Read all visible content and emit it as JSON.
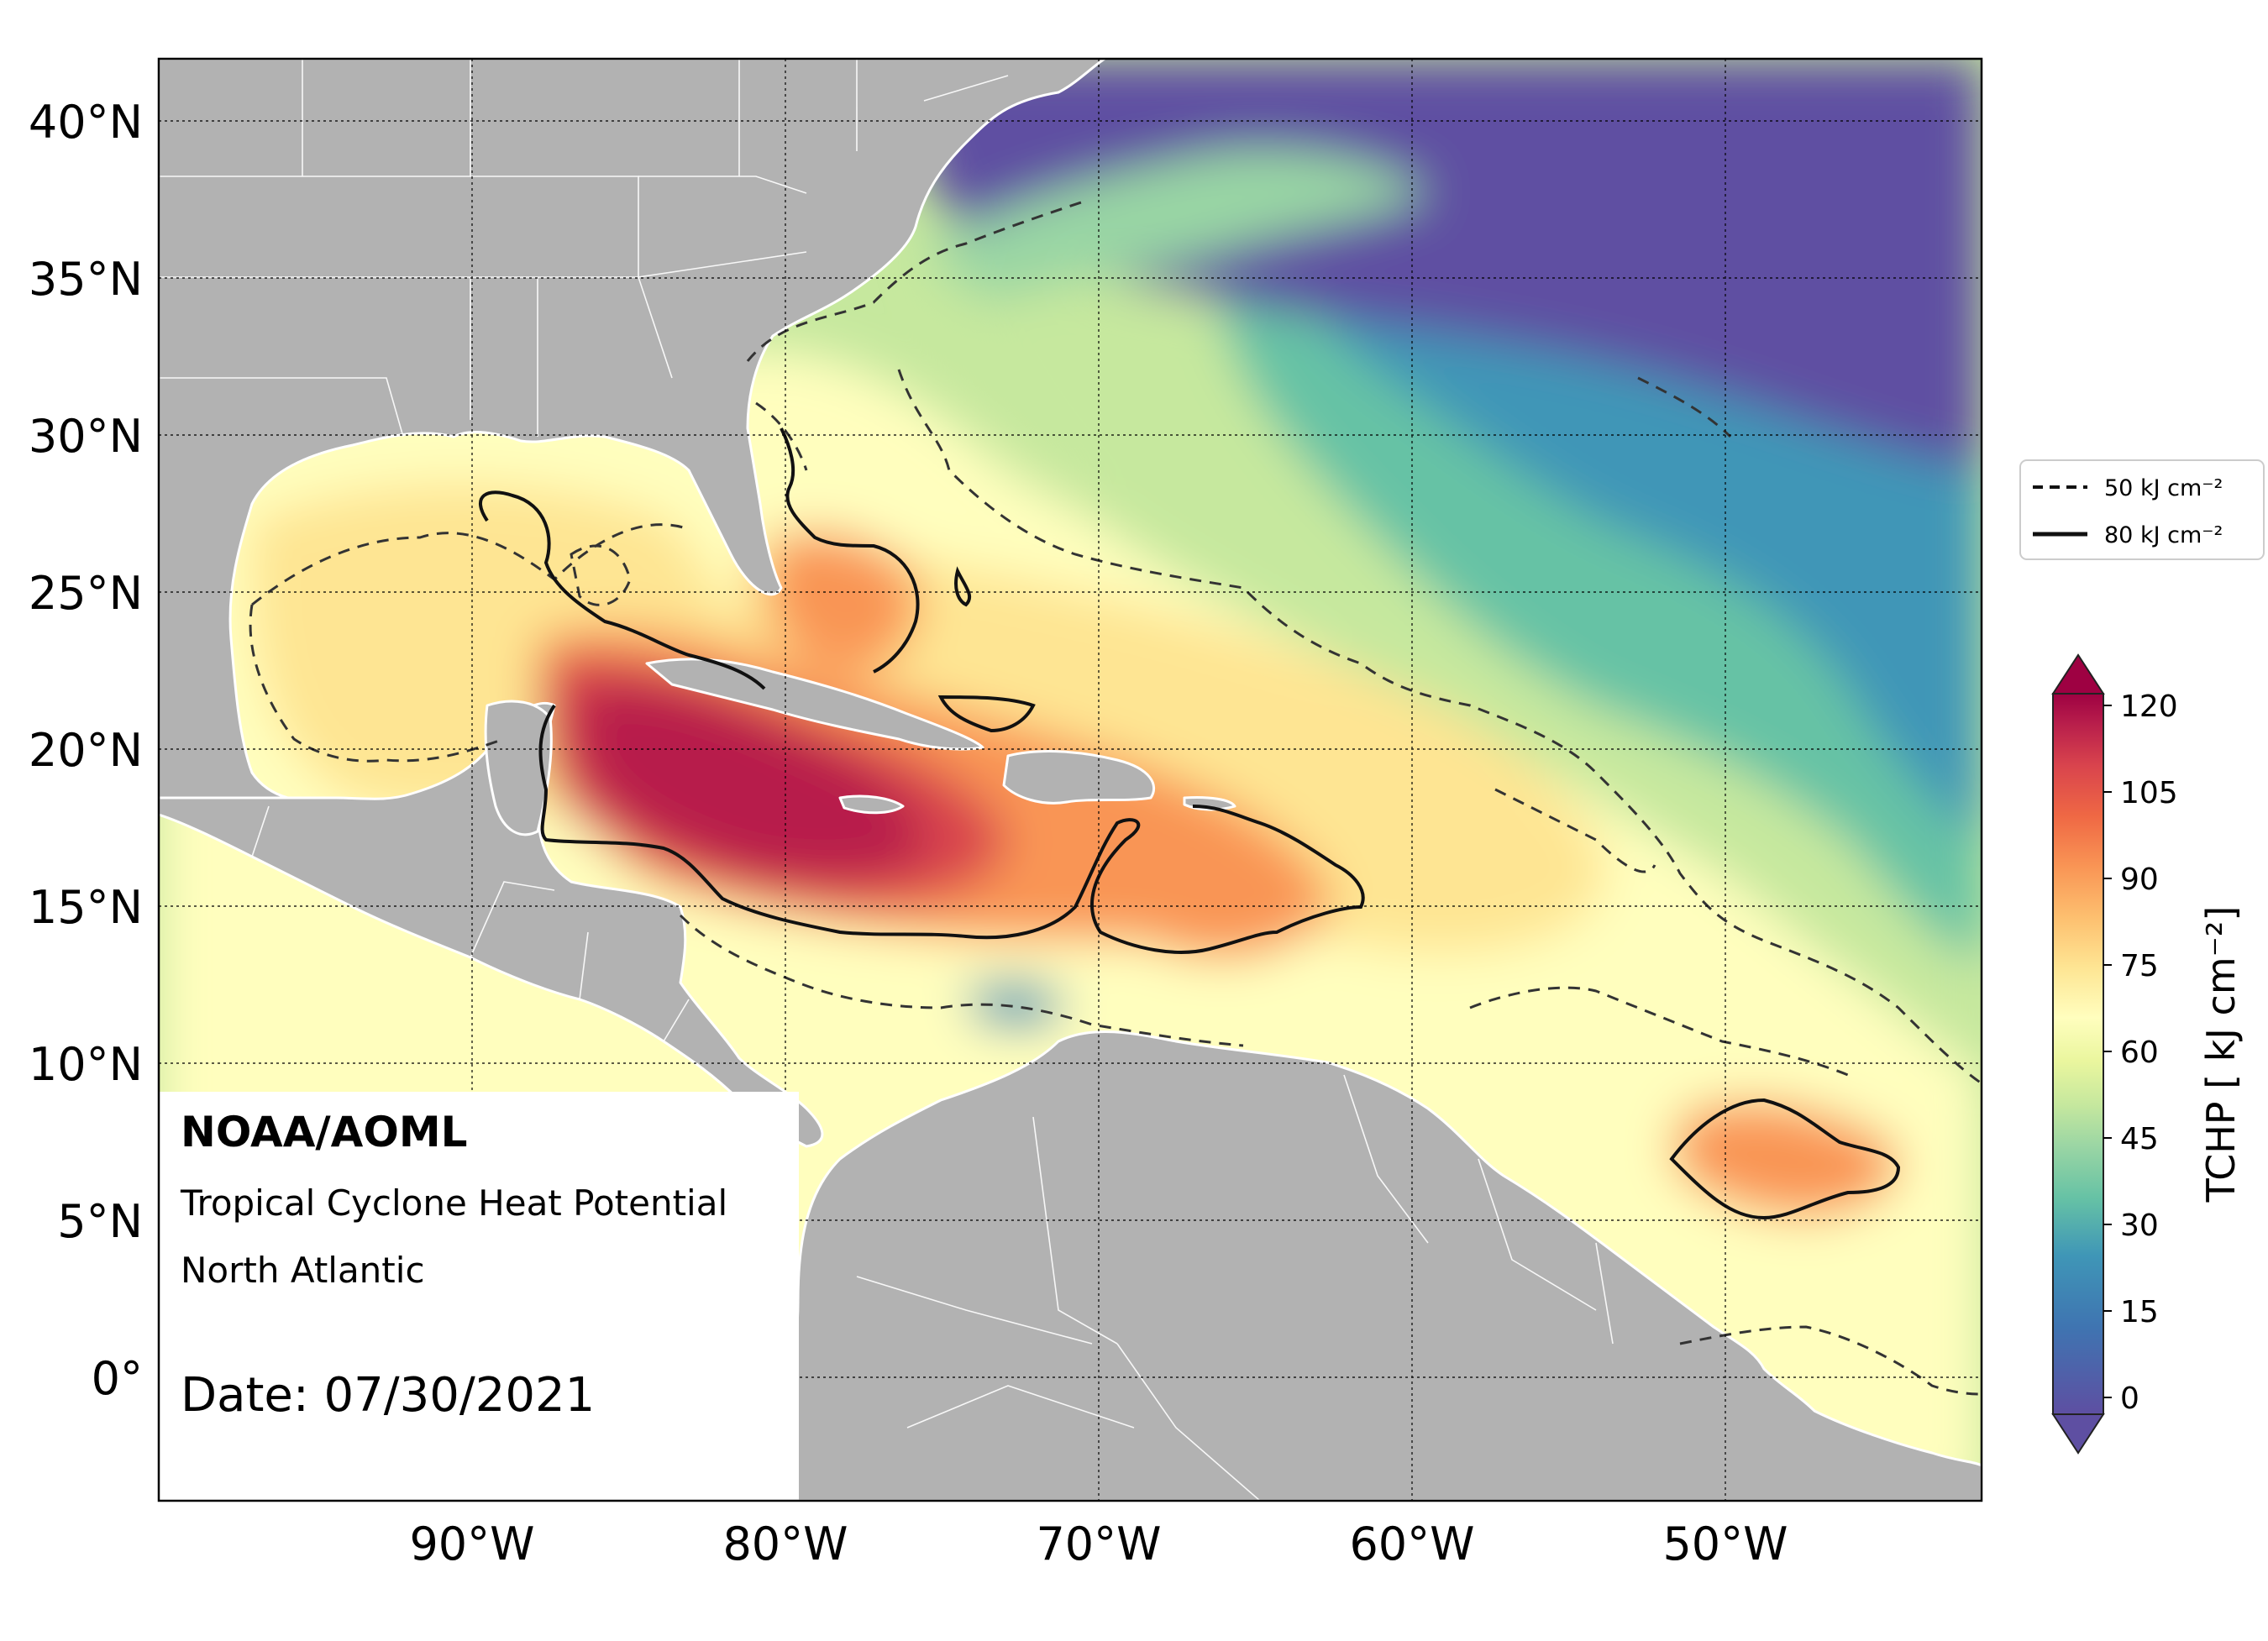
{
  "map": {
    "lat_labels": [
      "40°N",
      "35°N",
      "30°N",
      "25°N",
      "20°N",
      "15°N",
      "10°N",
      "5°N",
      "0°"
    ],
    "lon_labels": [
      "90°W",
      "80°W",
      "70°W",
      "60°W",
      "50°W"
    ],
    "extent": {
      "lon": [
        -100,
        -42
      ],
      "lat": [
        -4,
        42
      ]
    }
  },
  "info_box": {
    "agency": "NOAA/AOML",
    "product": "Tropical Cyclone Heat Potential",
    "region": "North Atlantic",
    "date": "Date: 07/30/2021"
  },
  "legend": {
    "items": [
      {
        "style": "dashed",
        "label": "50 kJ cm⁻²"
      },
      {
        "style": "solid",
        "label": "80 kJ cm⁻²"
      }
    ]
  },
  "colorbar": {
    "label": "TCHP [ kJ cm⁻²]",
    "ticks": [
      "120",
      "105",
      "90",
      "75",
      "60",
      "45",
      "30",
      "15",
      "0"
    ],
    "range": [
      0,
      120
    ],
    "colors": [
      "#5e4fa2",
      "#3f74b1",
      "#3f96b7",
      "#66c2a5",
      "#99d5a4",
      "#c6e89e",
      "#eaf69e",
      "#fffebe",
      "#fee593",
      "#fdbf6f",
      "#f99555",
      "#ef6844",
      "#d9444d",
      "#b71d4b",
      "#9e0142"
    ]
  },
  "colors": {
    "land": "#b2b2b2",
    "borders": "#ffffff",
    "contour": "#222222"
  }
}
